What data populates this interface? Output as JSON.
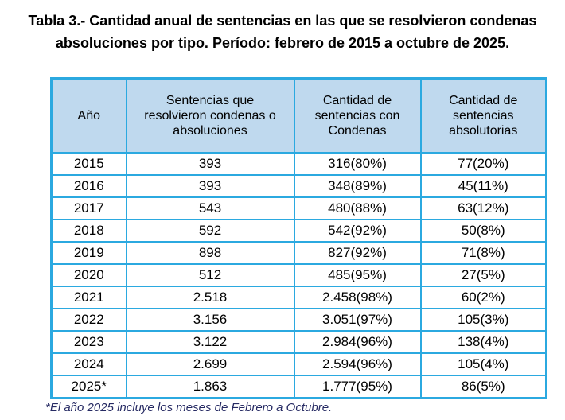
{
  "title": {
    "line1": "Tabla 3.- Cantidad anual de sentencias en las que se resolvieron condenas",
    "line2": "absoluciones por tipo. Período: febrero de 2015 a octubre de 2025."
  },
  "table": {
    "headers": [
      "Año",
      "Sentencias que resolvieron condenas o absoluciones",
      "Cantidad de sentencias con Condenas",
      "Cantidad de sentencias absolutorias"
    ],
    "rows": [
      [
        "2015",
        "393",
        "316(80%)",
        "77(20%)"
      ],
      [
        "2016",
        "393",
        "348(89%)",
        "45(11%)"
      ],
      [
        "2017",
        "543",
        "480(88%)",
        "63(12%)"
      ],
      [
        "2018",
        "592",
        "542(92%)",
        "50(8%)"
      ],
      [
        "2019",
        "898",
        "827(92%)",
        "71(8%)"
      ],
      [
        "2020",
        "512",
        "485(95%)",
        "27(5%)"
      ],
      [
        "2021",
        "2.518",
        "2.458(98%)",
        "60(2%)"
      ],
      [
        "2022",
        "3.156",
        "3.051(97%)",
        "105(3%)"
      ],
      [
        "2023",
        "3.122",
        "2.984(96%)",
        "138(4%)"
      ],
      [
        "2024",
        "2.699",
        "2.594(96%)",
        "105(4%)"
      ],
      [
        "2025*",
        "1.863",
        "1.777(95%)",
        "86(5%)"
      ]
    ]
  },
  "footnote": "*El año 2025 incluye los meses de Febrero a Octubre.",
  "colors": {
    "table_border": "#2BA9E0",
    "header_bg": "#BFD9EE",
    "footnote_text": "#262A63"
  },
  "chart_data": {
    "type": "table",
    "title": "Tabla 3.- Cantidad anual de sentencias en las que se resolvieron condenas absoluciones por tipo. Período: febrero de 2015 a octubre de 2025.",
    "categories": [
      "2015",
      "2016",
      "2017",
      "2018",
      "2019",
      "2020",
      "2021",
      "2022",
      "2023",
      "2024",
      "2025*"
    ],
    "series": [
      {
        "name": "Sentencias que resolvieron condenas o absoluciones",
        "values": [
          393,
          393,
          543,
          592,
          898,
          512,
          2518,
          3156,
          3122,
          2699,
          1863
        ]
      },
      {
        "name": "Cantidad de sentencias con Condenas",
        "values": [
          316,
          348,
          480,
          542,
          827,
          485,
          2458,
          3051,
          2984,
          2594,
          1777
        ]
      },
      {
        "name": "Cantidad de sentencias con Condenas (%)",
        "values": [
          80,
          89,
          88,
          92,
          92,
          95,
          98,
          97,
          96,
          96,
          95
        ]
      },
      {
        "name": "Cantidad de sentencias absolutorias",
        "values": [
          77,
          45,
          63,
          50,
          71,
          27,
          60,
          105,
          138,
          105,
          86
        ]
      },
      {
        "name": "Cantidad de sentencias absolutorias (%)",
        "values": [
          20,
          11,
          12,
          8,
          8,
          5,
          2,
          3,
          4,
          4,
          5
        ]
      }
    ]
  }
}
